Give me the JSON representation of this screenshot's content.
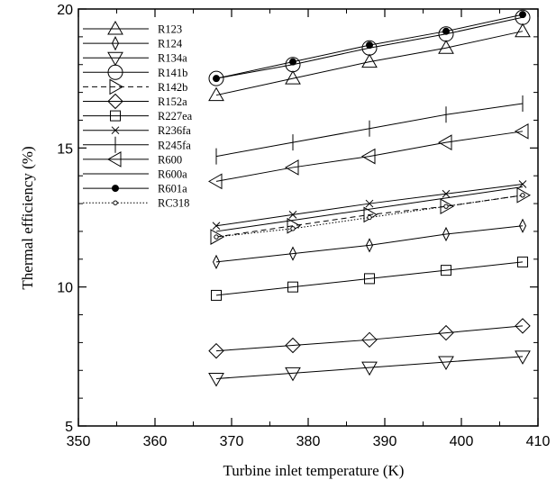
{
  "chart_data": {
    "type": "line",
    "title": "",
    "xlabel": "Turbine inlet temperature (K)",
    "ylabel": "Thermal efficiency (%)",
    "xlim": [
      350,
      410
    ],
    "ylim": [
      5,
      20
    ],
    "xticks": [
      350,
      360,
      370,
      380,
      390,
      400,
      410
    ],
    "yticks": [
      5,
      10,
      15,
      20
    ],
    "grid": false,
    "legend_position": "top-left",
    "x": [
      368,
      378,
      388,
      398,
      408
    ],
    "series": [
      {
        "name": "R123",
        "marker": "triangle-up",
        "dash": "solid",
        "values": [
          16.9,
          17.5,
          18.1,
          18.6,
          19.2
        ]
      },
      {
        "name": "R124",
        "marker": "thin-diamond",
        "dash": "solid",
        "values": [
          10.9,
          11.2,
          11.5,
          11.9,
          12.2
        ]
      },
      {
        "name": "R134a",
        "marker": "triangle-down",
        "dash": "solid",
        "values": [
          6.7,
          6.9,
          7.1,
          7.3,
          7.5
        ]
      },
      {
        "name": "R141b",
        "marker": "circle",
        "dash": "solid",
        "values": [
          17.5,
          18.0,
          18.6,
          19.1,
          19.7
        ]
      },
      {
        "name": "R142b",
        "marker": "triangle-right",
        "dash": "dashed",
        "values": [
          11.8,
          12.2,
          12.6,
          12.9,
          13.3
        ]
      },
      {
        "name": "R152a",
        "marker": "diamond",
        "dash": "solid",
        "values": [
          7.7,
          7.9,
          8.1,
          8.35,
          8.6
        ]
      },
      {
        "name": "R227ea",
        "marker": "square",
        "dash": "solid",
        "values": [
          9.7,
          10.0,
          10.3,
          10.6,
          10.9
        ]
      },
      {
        "name": "R236fa",
        "marker": "x",
        "dash": "solid",
        "values": [
          12.2,
          12.6,
          13.0,
          13.35,
          13.7
        ]
      },
      {
        "name": "R245fa",
        "marker": "vline",
        "dash": "solid",
        "values": [
          14.7,
          15.2,
          15.7,
          16.2,
          16.6
        ]
      },
      {
        "name": "R600",
        "marker": "triangle-left",
        "dash": "solid",
        "values": [
          13.8,
          14.3,
          14.7,
          15.2,
          15.6
        ]
      },
      {
        "name": "R600a",
        "marker": "none",
        "dash": "solid",
        "values": [
          12.0,
          12.4,
          12.8,
          13.2,
          13.6
        ]
      },
      {
        "name": "R601a",
        "marker": "dot",
        "dash": "solid",
        "values": [
          17.5,
          18.1,
          18.7,
          19.2,
          19.8
        ]
      },
      {
        "name": "RC318",
        "marker": "small-circle",
        "dash": "dotted",
        "values": [
          11.8,
          12.1,
          12.5,
          12.9,
          13.3
        ]
      }
    ]
  }
}
